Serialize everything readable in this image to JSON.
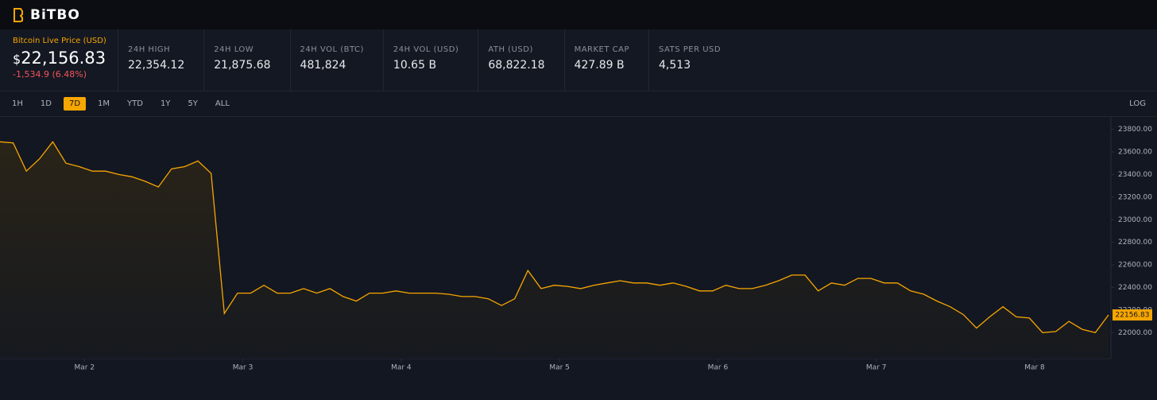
{
  "header": {
    "logo": "BiTBO"
  },
  "price": {
    "label": "Bitcoin Live Price (USD)",
    "currency": "$",
    "value": "22,156.83",
    "change": "-1,534.9 (6.48%)"
  },
  "stats": [
    {
      "label": "24H HIGH",
      "value": "22,354.12"
    },
    {
      "label": "24H LOW",
      "value": "21,875.68"
    },
    {
      "label": "24H VOL (BTC)",
      "value": "481,824"
    },
    {
      "label": "24H VOL (USD)",
      "value": "10.65 B"
    },
    {
      "label": "ATH (USD)",
      "value": "68,822.18"
    },
    {
      "label": "MARKET CAP",
      "value": "427.89 B"
    },
    {
      "label": "SATS PER USD",
      "value": "4,513"
    }
  ],
  "ranges": {
    "options": [
      "1H",
      "1D",
      "7D",
      "1M",
      "YTD",
      "1Y",
      "5Y",
      "ALL"
    ],
    "active": "7D",
    "log_button": "LOG"
  },
  "chart_data": {
    "type": "line",
    "log": false,
    "color": "#f7a600",
    "price_tag": "22156.83",
    "values": [
      23690,
      23680,
      23430,
      23540,
      23690,
      23500,
      23470,
      23430,
      23430,
      23400,
      23380,
      23340,
      23290,
      23450,
      23470,
      23520,
      23410,
      22170,
      22350,
      22350,
      22420,
      22350,
      22350,
      22390,
      22350,
      22390,
      22320,
      22280,
      22350,
      22350,
      22370,
      22350,
      22350,
      22350,
      22340,
      22320,
      22320,
      22300,
      22240,
      22300,
      22550,
      22390,
      22420,
      22410,
      22390,
      22420,
      22440,
      22460,
      22440,
      22440,
      22420,
      22440,
      22410,
      22370,
      22370,
      22420,
      22390,
      22390,
      22420,
      22460,
      22510,
      22510,
      22370,
      22440,
      22420,
      22480,
      22480,
      22440,
      22440,
      22370,
      22340,
      22280,
      22230,
      22160,
      22040,
      22140,
      22230,
      22140,
      22130,
      22000,
      22010,
      22100,
      22030,
      22000,
      22156.83
    ],
    "xlim": [
      0,
      84
    ],
    "xticks": [
      {
        "value": 6.4,
        "label": "Mar 2"
      },
      {
        "value": 18.4,
        "label": "Mar 3"
      },
      {
        "value": 30.4,
        "label": "Mar 4"
      },
      {
        "value": 42.4,
        "label": "Mar 5"
      },
      {
        "value": 54.4,
        "label": "Mar 6"
      },
      {
        "value": 66.4,
        "label": "Mar 7"
      },
      {
        "value": 78.4,
        "label": "Mar 8"
      }
    ],
    "ylim": [
      21770,
      23910
    ],
    "yticks": [
      {
        "value": 22000,
        "label": "22000.00"
      },
      {
        "value": 22200,
        "label": "22200.00"
      },
      {
        "value": 22400,
        "label": "22400.00"
      },
      {
        "value": 22600,
        "label": "22600.00"
      },
      {
        "value": 22800,
        "label": "22800.00"
      },
      {
        "value": 23000,
        "label": "23000.00"
      },
      {
        "value": 23200,
        "label": "23200.00"
      },
      {
        "value": 23400,
        "label": "23400.00"
      },
      {
        "value": 23600,
        "label": "23600.00"
      },
      {
        "value": 23800,
        "label": "23800.00"
      }
    ]
  }
}
